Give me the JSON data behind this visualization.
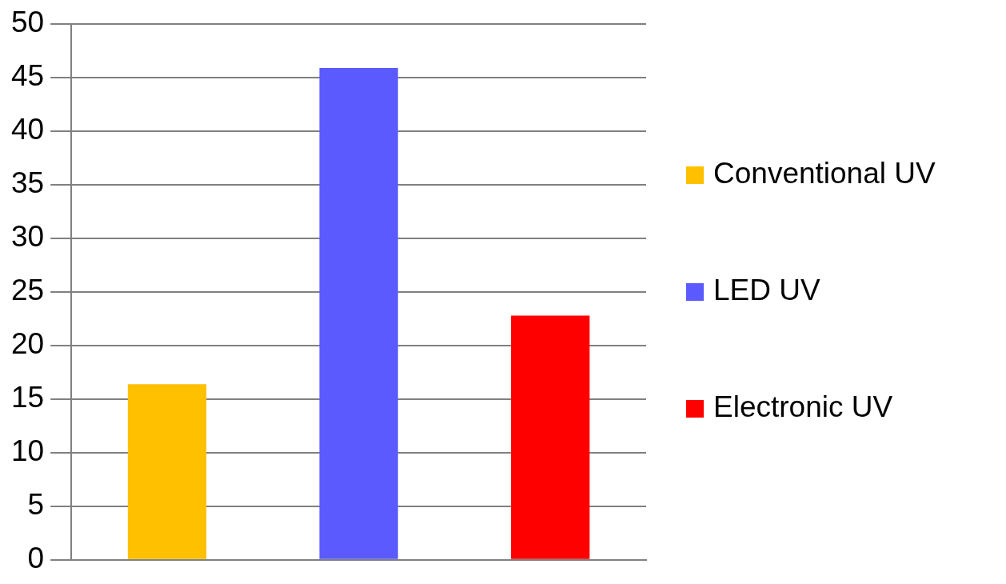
{
  "chart_data": {
    "type": "bar",
    "categories": [
      null
    ],
    "series": [
      {
        "name": "Conventional UV",
        "color": "#ffc000",
        "values": [
          16.4
        ]
      },
      {
        "name": "LED UV",
        "color": "#5a5aff",
        "values": [
          45.9
        ]
      },
      {
        "name": "Electronic UV",
        "color": "#ff0000",
        "values": [
          22.8
        ]
      }
    ],
    "ylim": [
      0,
      50
    ],
    "yticks": [
      0,
      5,
      10,
      15,
      20,
      25,
      30,
      35,
      40,
      45,
      50
    ],
    "grid": "y",
    "legend": "right"
  }
}
